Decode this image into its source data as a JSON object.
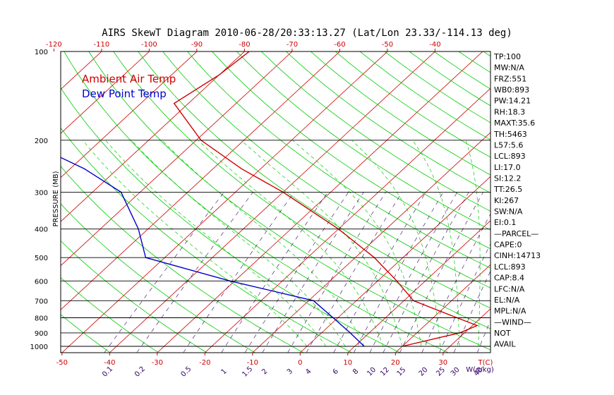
{
  "title": "AIRS SkewT Diagram 2010-06-28/20:33:13.27 (Lat/Lon 23.33/-114.13 deg)",
  "colors": {
    "frame": "#000000",
    "isotherm": "#cc0000",
    "dry_adiabat": "#00cc00",
    "moist_adiabat": "#00cc00",
    "mixing_ratio": "#330066",
    "temperature": "#cc0000",
    "dewpoint": "#0000cc",
    "top_ticks": "#cc0000",
    "bottom_ticks": "#cc0000",
    "mixing_labels": "#330066"
  },
  "legend": {
    "temp_label": "Ambient Air Temp",
    "dew_label": "Dew Point Temp"
  },
  "top_axis_labels": [
    "-120",
    "-110",
    "-100",
    "-90",
    "-80",
    "-70",
    "-60",
    "-50",
    "-40"
  ],
  "bottom_axis_labels": [
    "-50",
    "-40",
    "-30",
    "-20",
    "-10",
    "0",
    "10",
    "20",
    "30"
  ],
  "bottom_axis_unit": "T(C)",
  "mixing_ratio_labels": [
    "0.1",
    "0.2",
    "0.5",
    "1",
    "1.5",
    "2",
    "3",
    "4",
    "6",
    "8",
    "10",
    "12",
    "15",
    "20",
    "25",
    "30",
    "40"
  ],
  "mixing_ratio_unit": "W(g/kg)",
  "pressure_labels": [
    "100",
    "200",
    "300",
    "400",
    "500",
    "600",
    "700",
    "800",
    "900",
    "1000"
  ],
  "pressure_axis_label": "PRESSURE (MB)",
  "indices": [
    "TP:100",
    "MW:N/A",
    "FRZ:551",
    "WB0:893",
    "PW:14.21",
    "RH:18.3",
    "MAXT:35.6",
    "TH:5463",
    "L57:5.6",
    "LCL:893",
    "LI:17.0",
    "SI:12.2",
    "TT:26.5",
    "KI:267",
    "SW:N/A",
    "EI:0.1",
    "—PARCEL—",
    "CAPE:0",
    "CINH:14713",
    "LCL:893",
    "CAP:8.4",
    "LFC:N/A",
    "EL:N/A",
    "MPL:N/A",
    "—WIND—",
    "NOT",
    "AVAIL"
  ],
  "chart_data": {
    "type": "line",
    "title": "AIRS SkewT Diagram 2010-06-28/20:33:13.27 (Lat/Lon 23.33/-114.13 deg)",
    "ylabel": "PRESSURE (MB)",
    "xlabel": "T(C)",
    "y_scale": "log",
    "ylim": [
      1050,
      100
    ],
    "xlim_at_surface": [
      -55,
      41
    ],
    "grid": true,
    "legend_position": "top-left",
    "pressure_levels": [
      100,
      200,
      300,
      400,
      500,
      600,
      700,
      800,
      900,
      1000
    ],
    "series": [
      {
        "name": "Ambient Air Temp",
        "color": "#cc0000",
        "points": [
          {
            "p": 100,
            "t": -79
          },
          {
            "p": 120,
            "t": -80
          },
          {
            "p": 150,
            "t": -83
          },
          {
            "p": 200,
            "t": -69
          },
          {
            "p": 250,
            "t": -54
          },
          {
            "p": 300,
            "t": -40
          },
          {
            "p": 400,
            "t": -20
          },
          {
            "p": 500,
            "t": -6
          },
          {
            "p": 600,
            "t": 4
          },
          {
            "p": 700,
            "t": 12
          },
          {
            "p": 800,
            "t": 25
          },
          {
            "p": 850,
            "t": 31
          },
          {
            "p": 900,
            "t": 29
          },
          {
            "p": 1000,
            "t": 20
          }
        ]
      },
      {
        "name": "Dew Point Temp",
        "color": "#0000cc",
        "points": [
          {
            "p": 100,
            "t": -120
          },
          {
            "p": 150,
            "t": -123
          },
          {
            "p": 200,
            "t": -106
          },
          {
            "p": 250,
            "t": -87
          },
          {
            "p": 300,
            "t": -74
          },
          {
            "p": 400,
            "t": -62
          },
          {
            "p": 500,
            "t": -54
          },
          {
            "p": 600,
            "t": -31
          },
          {
            "p": 700,
            "t": -9
          },
          {
            "p": 800,
            "t": -1
          },
          {
            "p": 900,
            "t": 6
          },
          {
            "p": 1000,
            "t": 12
          }
        ]
      }
    ]
  }
}
